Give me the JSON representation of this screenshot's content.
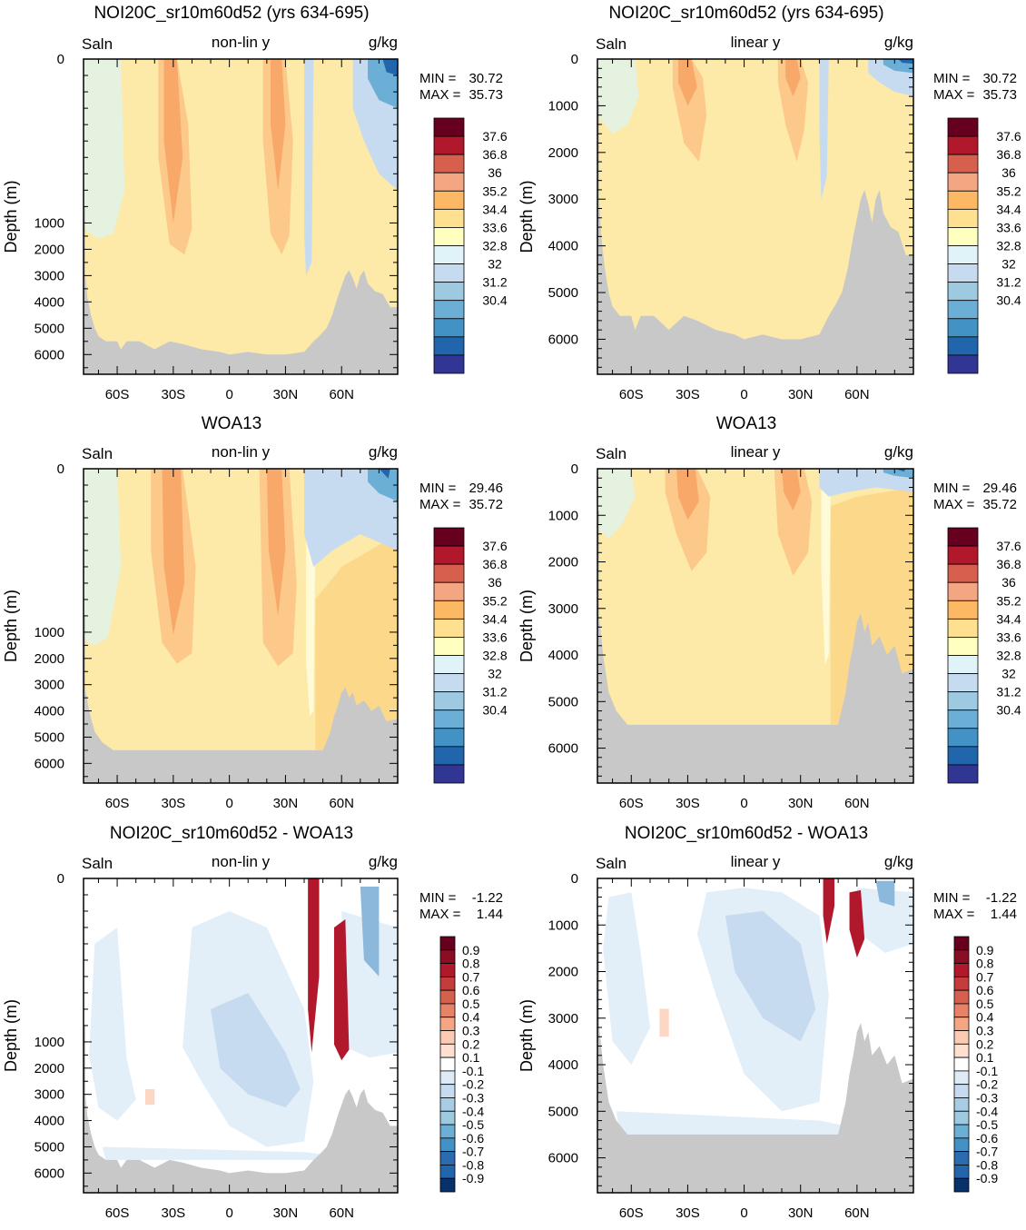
{
  "figure": {
    "row_titles": [
      "NOI20C_sr10m60d52 (yrs 634-695)",
      "WOA13",
      "NOI20C_sr10m60d52 - WOA13"
    ],
    "variable": "Saln",
    "units": "g/kg",
    "ylabel": "Depth (m)",
    "scale_nonlin": "non-lin y",
    "scale_linear": "linear y",
    "min_label": "MIN =",
    "max_label": "MAX ="
  },
  "chart_data": [
    {
      "type": "heatmap",
      "panel": "model-nonlin",
      "title": "NOI20C_sr10m60d52 (yrs 634-695)",
      "scale": "non-lin y",
      "min": "30.72",
      "max": "35.73",
      "colorbar": "salinity"
    },
    {
      "type": "heatmap",
      "panel": "model-linear",
      "title": "NOI20C_sr10m60d52 (yrs 634-695)",
      "scale": "linear y",
      "min": "30.72",
      "max": "35.73",
      "colorbar": "salinity"
    },
    {
      "type": "heatmap",
      "panel": "woa-nonlin",
      "title": "WOA13",
      "scale": "non-lin y",
      "min": "29.46",
      "max": "35.72",
      "colorbar": "salinity"
    },
    {
      "type": "heatmap",
      "panel": "woa-linear",
      "title": "WOA13",
      "scale": "linear y",
      "min": "29.46",
      "max": "35.72",
      "colorbar": "salinity"
    },
    {
      "type": "heatmap",
      "panel": "diff-nonlin",
      "title": "NOI20C_sr10m60d52 - WOA13",
      "scale": "non-lin y",
      "min": "-1.22",
      "max": "1.44",
      "colorbar": "difference"
    },
    {
      "type": "heatmap",
      "panel": "diff-linear",
      "title": "NOI20C_sr10m60d52 - WOA13",
      "scale": "linear y",
      "min": "-1.22",
      "max": "1.44",
      "colorbar": "difference"
    }
  ],
  "axes": {
    "x_ticks": [
      "60S",
      "30S",
      "0",
      "30N",
      "60N"
    ],
    "x_values": [
      -60,
      -30,
      0,
      30,
      60
    ],
    "xlim": [
      -78,
      90
    ],
    "nonlin_ticks": [
      "0",
      "1000",
      "2000",
      "3000",
      "4000",
      "5000",
      "6000"
    ],
    "nonlin_values": [
      0,
      1000,
      2000,
      3000,
      4000,
      5000,
      6000
    ],
    "linear_ticks": [
      "0",
      "1000",
      "2000",
      "3000",
      "4000",
      "5000",
      "6000"
    ],
    "linear_values": [
      0,
      1000,
      2000,
      3000,
      4000,
      5000,
      6000
    ],
    "ylim": [
      0,
      6750
    ]
  },
  "colorbars": {
    "salinity": {
      "labels": [
        "37.6",
        "36.8",
        "36",
        "35.2",
        "34.4",
        "33.6",
        "32.8",
        "32",
        "31.2",
        "30.4"
      ],
      "colors": [
        "#67001f",
        "#b2182b",
        "#d6604d",
        "#f4a582",
        "#fdb863",
        "#fee090",
        "#ffffbf",
        "#e0f3f8",
        "#c6dbef",
        "#9ecae1",
        "#6baed6",
        "#4292c6",
        "#2166ac",
        "#313695"
      ]
    },
    "difference": {
      "labels": [
        "0.9",
        "0.8",
        "0.7",
        "0.6",
        "0.5",
        "0.4",
        "0.3",
        "0.2",
        "0.1",
        "-0.1",
        "-0.2",
        "-0.3",
        "-0.4",
        "-0.5",
        "-0.6",
        "-0.7",
        "-0.8",
        "-0.9"
      ],
      "colors": [
        "#67001f",
        "#8b0d24",
        "#b2182b",
        "#c43c3c",
        "#d6604d",
        "#e58267",
        "#f4a582",
        "#fbcab3",
        "#fde0d0",
        "#ffffff",
        "#deebf7",
        "#c6dbef",
        "#a8cce4",
        "#9ecae1",
        "#6baed6",
        "#4292c6",
        "#2b6cb0",
        "#2166ac",
        "#08306b"
      ]
    }
  },
  "fills": {
    "land": "#c8c8c8",
    "model_base": "#fde9a8",
    "woa_base": "#fde9a8",
    "woa_deep": "#fcd98a",
    "warm": "#fcc98a",
    "warm_core": "#f8a868",
    "fresh": "#e6f2e0",
    "cold1": "#c6dbef",
    "cold2": "#6baed6",
    "cold3": "#2166ac",
    "diff_base": "#ffffff",
    "diff_blue1": "#e2eef8",
    "diff_blue2": "#c6dbef",
    "diff_blue3": "#8cb8dc",
    "diff_red1": "#fcd7c4",
    "diff_red2": "#b2182b"
  }
}
